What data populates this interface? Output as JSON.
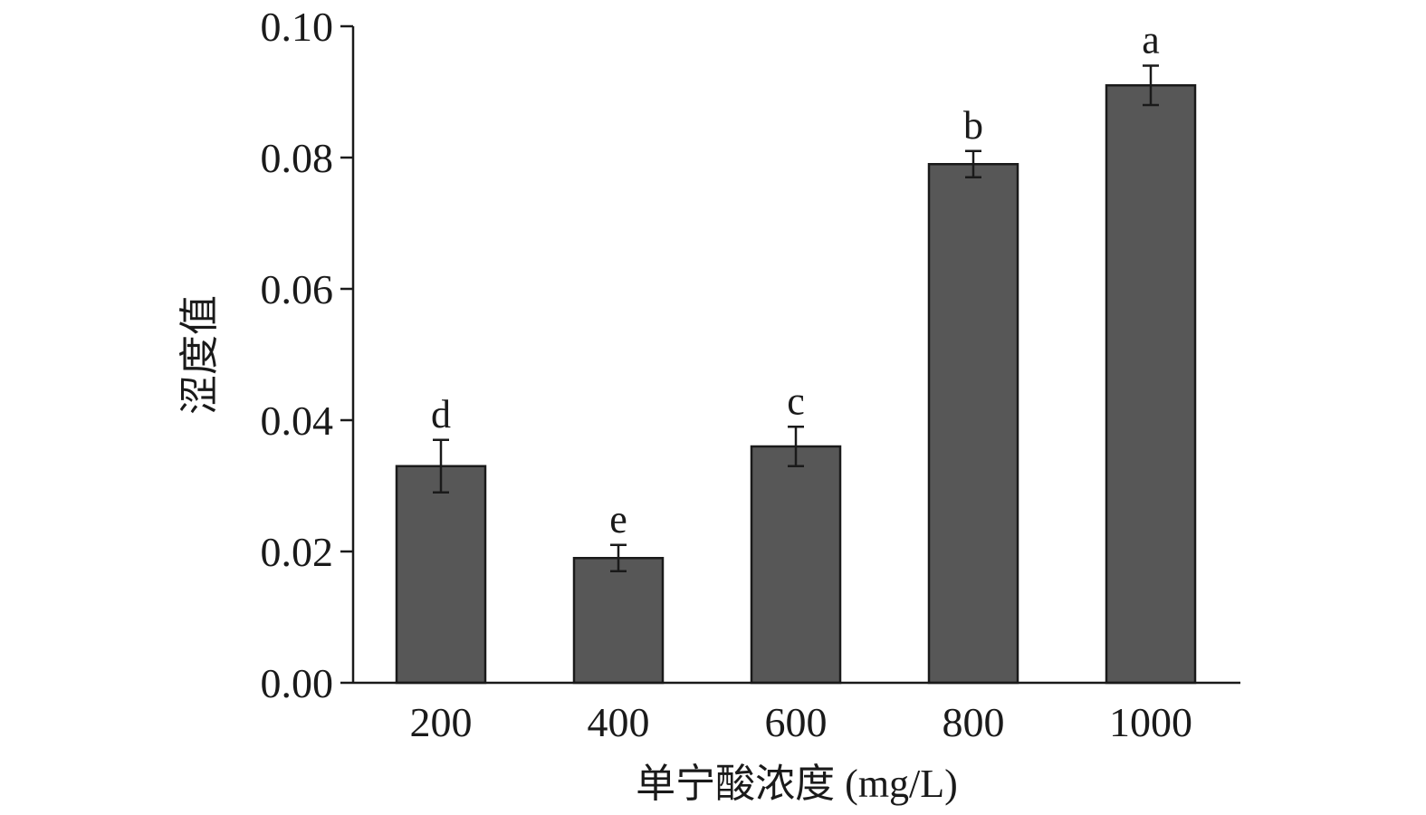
{
  "chart_data": {
    "type": "bar",
    "categories": [
      "200",
      "400",
      "600",
      "800",
      "1000"
    ],
    "values": [
      0.033,
      0.019,
      0.036,
      0.079,
      0.091
    ],
    "errors": [
      0.004,
      0.002,
      0.003,
      0.002,
      0.003
    ],
    "significance_letters": [
      "d",
      "e",
      "c",
      "b",
      "a"
    ],
    "xlabel": "单宁酸浓度 (mg/L)",
    "ylabel": "涩度值",
    "ylim": [
      0,
      0.1
    ],
    "yticks": [
      "0.00",
      "0.02",
      "0.04",
      "0.06",
      "0.08",
      "0.10"
    ],
    "grid": false,
    "bar_color": "#575757",
    "edge_color": "#1a1a1a"
  }
}
